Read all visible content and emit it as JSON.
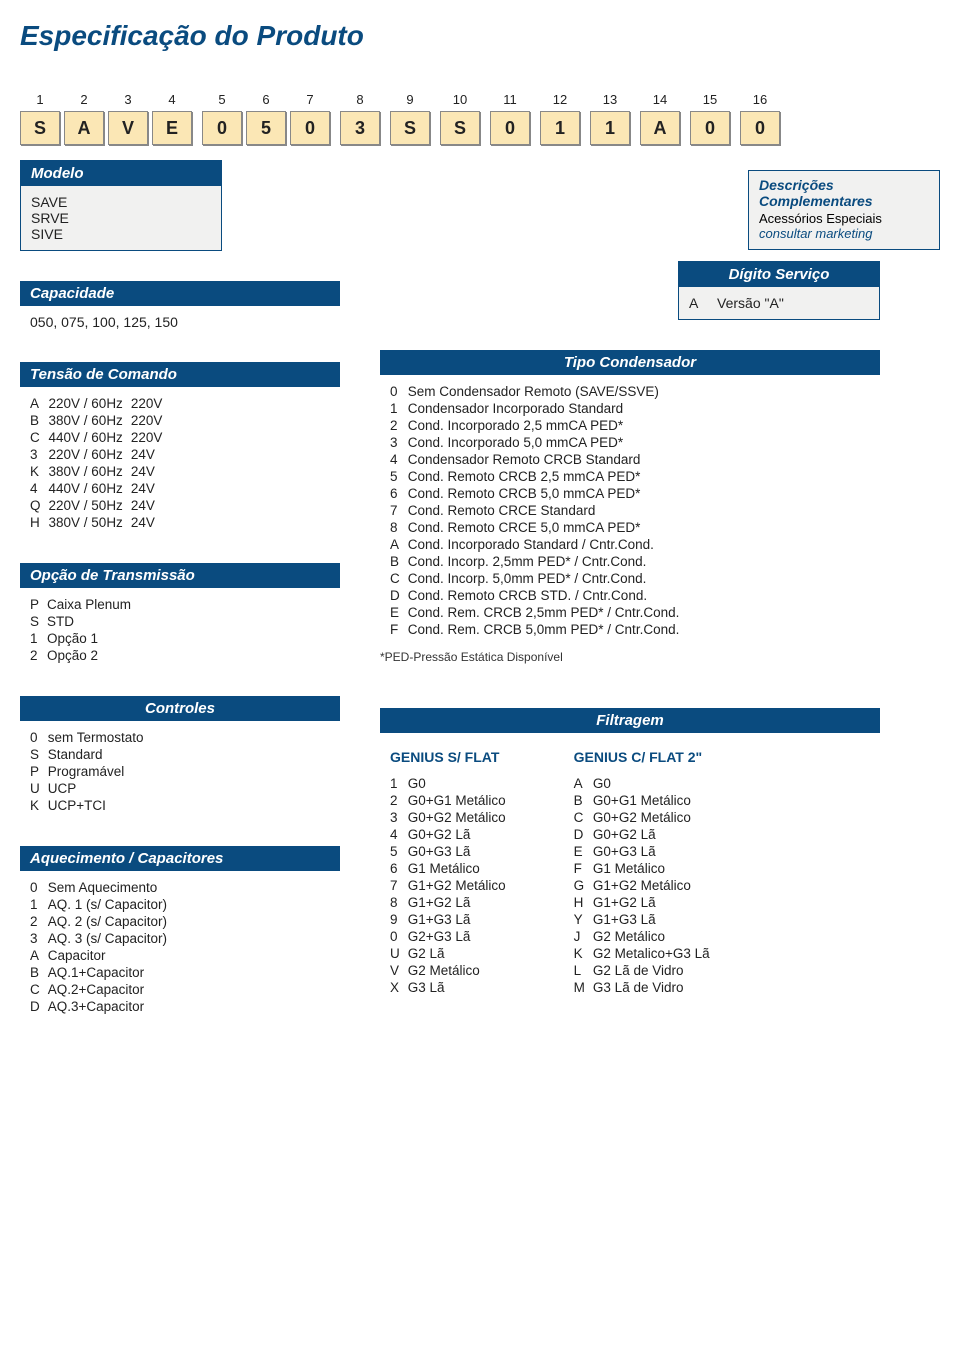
{
  "title": "Especificação do Produto",
  "colors": {
    "brand": "#0a4b7f",
    "codebox_bg": "#fbe7b5",
    "panel_bg": "#f1f1f0"
  },
  "code_positions": [
    {
      "n": "1",
      "v": "S"
    },
    {
      "n": "2",
      "v": "A"
    },
    {
      "n": "3",
      "v": "V"
    },
    {
      "n": "4",
      "v": "E"
    },
    {
      "n": "5",
      "v": "0"
    },
    {
      "n": "6",
      "v": "5"
    },
    {
      "n": "7",
      "v": "0"
    },
    {
      "n": "8",
      "v": "3"
    },
    {
      "n": "9",
      "v": "S"
    },
    {
      "n": "10",
      "v": "S"
    },
    {
      "n": "11",
      "v": "0"
    },
    {
      "n": "12",
      "v": "1"
    },
    {
      "n": "13",
      "v": "1"
    },
    {
      "n": "14",
      "v": "A"
    },
    {
      "n": "15",
      "v": "0"
    },
    {
      "n": "16",
      "v": "0"
    }
  ],
  "modelo": {
    "header": "Modelo",
    "items": [
      "SAVE",
      "SRVE",
      "SIVE"
    ]
  },
  "complement": {
    "header": "Descrições Complementares",
    "line1": "Acessórios Especiais",
    "line2": "consultar marketing"
  },
  "capacidade": {
    "header": "Capacidade",
    "text": "050, 075, 100, 125, 150"
  },
  "digito": {
    "header": "Dígito Serviço",
    "code": "A",
    "label": "Versão \"A\""
  },
  "tensao": {
    "header": "Tensão de Comando",
    "rows": [
      [
        "A",
        "220V / 60Hz",
        "220V"
      ],
      [
        "B",
        "380V / 60Hz",
        "220V"
      ],
      [
        "C",
        "440V / 60Hz",
        "220V"
      ],
      [
        "3",
        "220V / 60Hz",
        "24V"
      ],
      [
        "K",
        "380V / 60Hz",
        "24V"
      ],
      [
        "4",
        "440V / 60Hz",
        "24V"
      ],
      [
        "Q",
        "220V / 50Hz",
        "24V"
      ],
      [
        "H",
        "380V / 50Hz",
        "24V"
      ]
    ]
  },
  "transmissao": {
    "header": "Opção de Transmissão",
    "rows": [
      [
        "P",
        "Caixa Plenum"
      ],
      [
        "S",
        "STD"
      ],
      [
        "1",
        "Opção 1"
      ],
      [
        "2",
        "Opção 2"
      ]
    ]
  },
  "controles": {
    "header": "Controles",
    "rows": [
      [
        "0",
        "sem Termostato"
      ],
      [
        "S",
        "Standard"
      ],
      [
        "P",
        "Programável"
      ],
      [
        "U",
        "UCP"
      ],
      [
        "K",
        "UCP+TCI"
      ]
    ]
  },
  "aquecimento": {
    "header": "Aquecimento / Capacitores",
    "rows": [
      [
        "0",
        "Sem Aquecimento"
      ],
      [
        "1",
        "AQ. 1 (s/ Capacitor)"
      ],
      [
        "2",
        "AQ. 2 (s/ Capacitor)"
      ],
      [
        "3",
        "AQ. 3 (s/ Capacitor)"
      ],
      [
        "A",
        "Capacitor"
      ],
      [
        "B",
        "AQ.1+Capacitor"
      ],
      [
        "C",
        "AQ.2+Capacitor"
      ],
      [
        "D",
        "AQ.3+Capacitor"
      ]
    ]
  },
  "condensador": {
    "header": "Tipo Condensador",
    "rows": [
      [
        "0",
        "Sem Condensador Remoto (SAVE/SSVE)"
      ],
      [
        "1",
        "Condensador Incorporado Standard"
      ],
      [
        "2",
        "Cond. Incorporado 2,5 mmCA PED*"
      ],
      [
        "3",
        "Cond. Incorporado 5,0 mmCA PED*"
      ],
      [
        "4",
        "Condensador Remoto CRCB Standard"
      ],
      [
        "5",
        "Cond. Remoto CRCB 2,5 mmCA PED*"
      ],
      [
        "6",
        "Cond. Remoto CRCB 5,0 mmCA PED*"
      ],
      [
        "7",
        "Cond. Remoto CRCE Standard"
      ],
      [
        "8",
        "Cond. Remoto CRCE 5,0 mmCA PED*"
      ],
      [
        "A",
        "Cond. Incorporado Standard / Cntr.Cond."
      ],
      [
        "B",
        "Cond. Incorp. 2,5mm PED* / Cntr.Cond."
      ],
      [
        "C",
        "Cond. Incorp. 5,0mm PED* / Cntr.Cond."
      ],
      [
        "D",
        "Cond. Remoto CRCB STD. / Cntr.Cond."
      ],
      [
        "E",
        "Cond. Rem. CRCB 2,5mm PED* / Cntr.Cond."
      ],
      [
        "F",
        "Cond. Rem. CRCB 5,0mm PED* / Cntr.Cond."
      ]
    ],
    "note": "*PED-Pressão Estática Disponível"
  },
  "filtragem": {
    "header": "Filtragem",
    "left_title": "GENIUS S/ FLAT",
    "right_title": "GENIUS C/ FLAT 2\"",
    "left": [
      [
        "1",
        "G0"
      ],
      [
        "2",
        "G0+G1 Metálico"
      ],
      [
        "3",
        "G0+G2 Metálico"
      ],
      [
        "4",
        "G0+G2 Lã"
      ],
      [
        "5",
        "G0+G3 Lã"
      ],
      [
        "6",
        "G1 Metálico"
      ],
      [
        "7",
        "G1+G2 Metálico"
      ],
      [
        "8",
        "G1+G2 Lã"
      ],
      [
        "9",
        "G1+G3 Lã"
      ],
      [
        "0",
        "G2+G3 Lã"
      ],
      [
        "U",
        "G2 Lã"
      ],
      [
        "V",
        "G2 Metálico"
      ],
      [
        "X",
        "G3 Lã"
      ]
    ],
    "right": [
      [
        "A",
        "G0"
      ],
      [
        "B",
        "G0+G1 Metálico"
      ],
      [
        "C",
        "G0+G2 Metálico"
      ],
      [
        "D",
        "G0+G2 Lã"
      ],
      [
        "E",
        "G0+G3 Lã"
      ],
      [
        "F",
        "G1 Metálico"
      ],
      [
        "G",
        "G1+G2 Metálico"
      ],
      [
        "H",
        "G1+G2 Lã"
      ],
      [
        "Y",
        "G1+G3 Lã"
      ],
      [
        "J",
        "G2 Metálico"
      ],
      [
        "K",
        "G2 Metalico+G3 Lã"
      ],
      [
        "L",
        "G2 Lã de Vidro"
      ],
      [
        "M",
        "G3 Lã de Vidro"
      ]
    ]
  }
}
